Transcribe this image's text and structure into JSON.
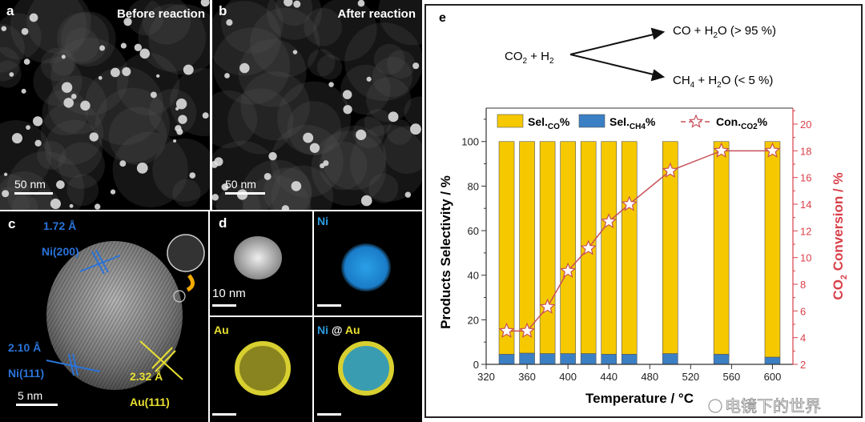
{
  "panels": {
    "a": {
      "letter": "a",
      "title": "Before reaction",
      "scale": "50 nm"
    },
    "b": {
      "letter": "b",
      "title": "After reaction",
      "scale": "50 nm"
    },
    "c": {
      "letter": "c",
      "d1": "1.72 Å",
      "p1": "Ni(200)",
      "d2": "2.10 Å",
      "p2": "Ni(111)",
      "d3": "2.32 Å",
      "p3": "Au(111)",
      "scale": "5 nm"
    },
    "d": {
      "letter": "d",
      "scale": "10 nm",
      "ni": "Ni",
      "au": "Au",
      "ni2": "Ni",
      "at": "@",
      "au2": "Au"
    },
    "e": {
      "letter": "e",
      "reactant_co2": "CO",
      "reactant_sub2": "2",
      "reactant_plus": " + H",
      "reactant_subH": "2",
      "product1": "CO + H",
      "product1_sub": "2",
      "product1_rest": "O  (> 95 %)",
      "product2_a": "CH",
      "product2_sub4": "4",
      "product2_b": " + H",
      "product2_sub2": "2",
      "product2_rest": "O (< 5 %)"
    }
  },
  "colors": {
    "co": "#f5c800",
    "ch4": "#3b7fc4",
    "conv": "#c8505a",
    "right_axis": "#d9404a"
  },
  "watermark": "电镜下的世界",
  "chart_data": {
    "type": "bar",
    "stacked": true,
    "x": [
      340,
      360,
      380,
      400,
      420,
      440,
      460,
      500,
      550,
      600
    ],
    "series": [
      {
        "name": "Sel.CO%",
        "axis": "left",
        "type": "bar",
        "values": [
          95.5,
          95,
          95.2,
          95.2,
          95.2,
          95.5,
          95.5,
          95.2,
          95.5,
          96.8
        ]
      },
      {
        "name": "Sel.CH4%",
        "axis": "left",
        "type": "bar",
        "values": [
          4.5,
          5,
          4.8,
          4.8,
          4.8,
          4.5,
          4.5,
          4.8,
          4.5,
          3.2
        ]
      },
      {
        "name": "Con.CO2%",
        "axis": "right",
        "type": "line",
        "marker": "star",
        "values": [
          4.5,
          4.5,
          6.3,
          9.0,
          10.7,
          12.7,
          14.0,
          16.5,
          18.0,
          18.0
        ]
      }
    ],
    "legend": [
      {
        "main": "Sel.",
        "sub": "CO",
        "tail": "%"
      },
      {
        "main": "Sel.",
        "sub": "CH4",
        "tail": "%"
      },
      {
        "main": "Con.",
        "sub": "CO2",
        "tail": "%"
      }
    ],
    "legend_placement": "top",
    "xlabel": "Temperature / °C",
    "ylabel": "Products Selectivity / %",
    "y2label_a": "CO",
    "y2label_sub": "2",
    "y2label_b": " Conversion / %",
    "xlim": [
      320,
      620
    ],
    "ylim": [
      0,
      115
    ],
    "y2lim": [
      2,
      21.2
    ],
    "xticks": [
      "320",
      "360",
      "400",
      "440",
      "480",
      "520",
      "560",
      "600"
    ],
    "yticks": [
      "0",
      "20",
      "40",
      "60",
      "80",
      "100"
    ],
    "y2ticks": [
      "2",
      "4",
      "6",
      "8",
      "10",
      "12",
      "14",
      "16",
      "18",
      "20"
    ],
    "grid": false
  }
}
